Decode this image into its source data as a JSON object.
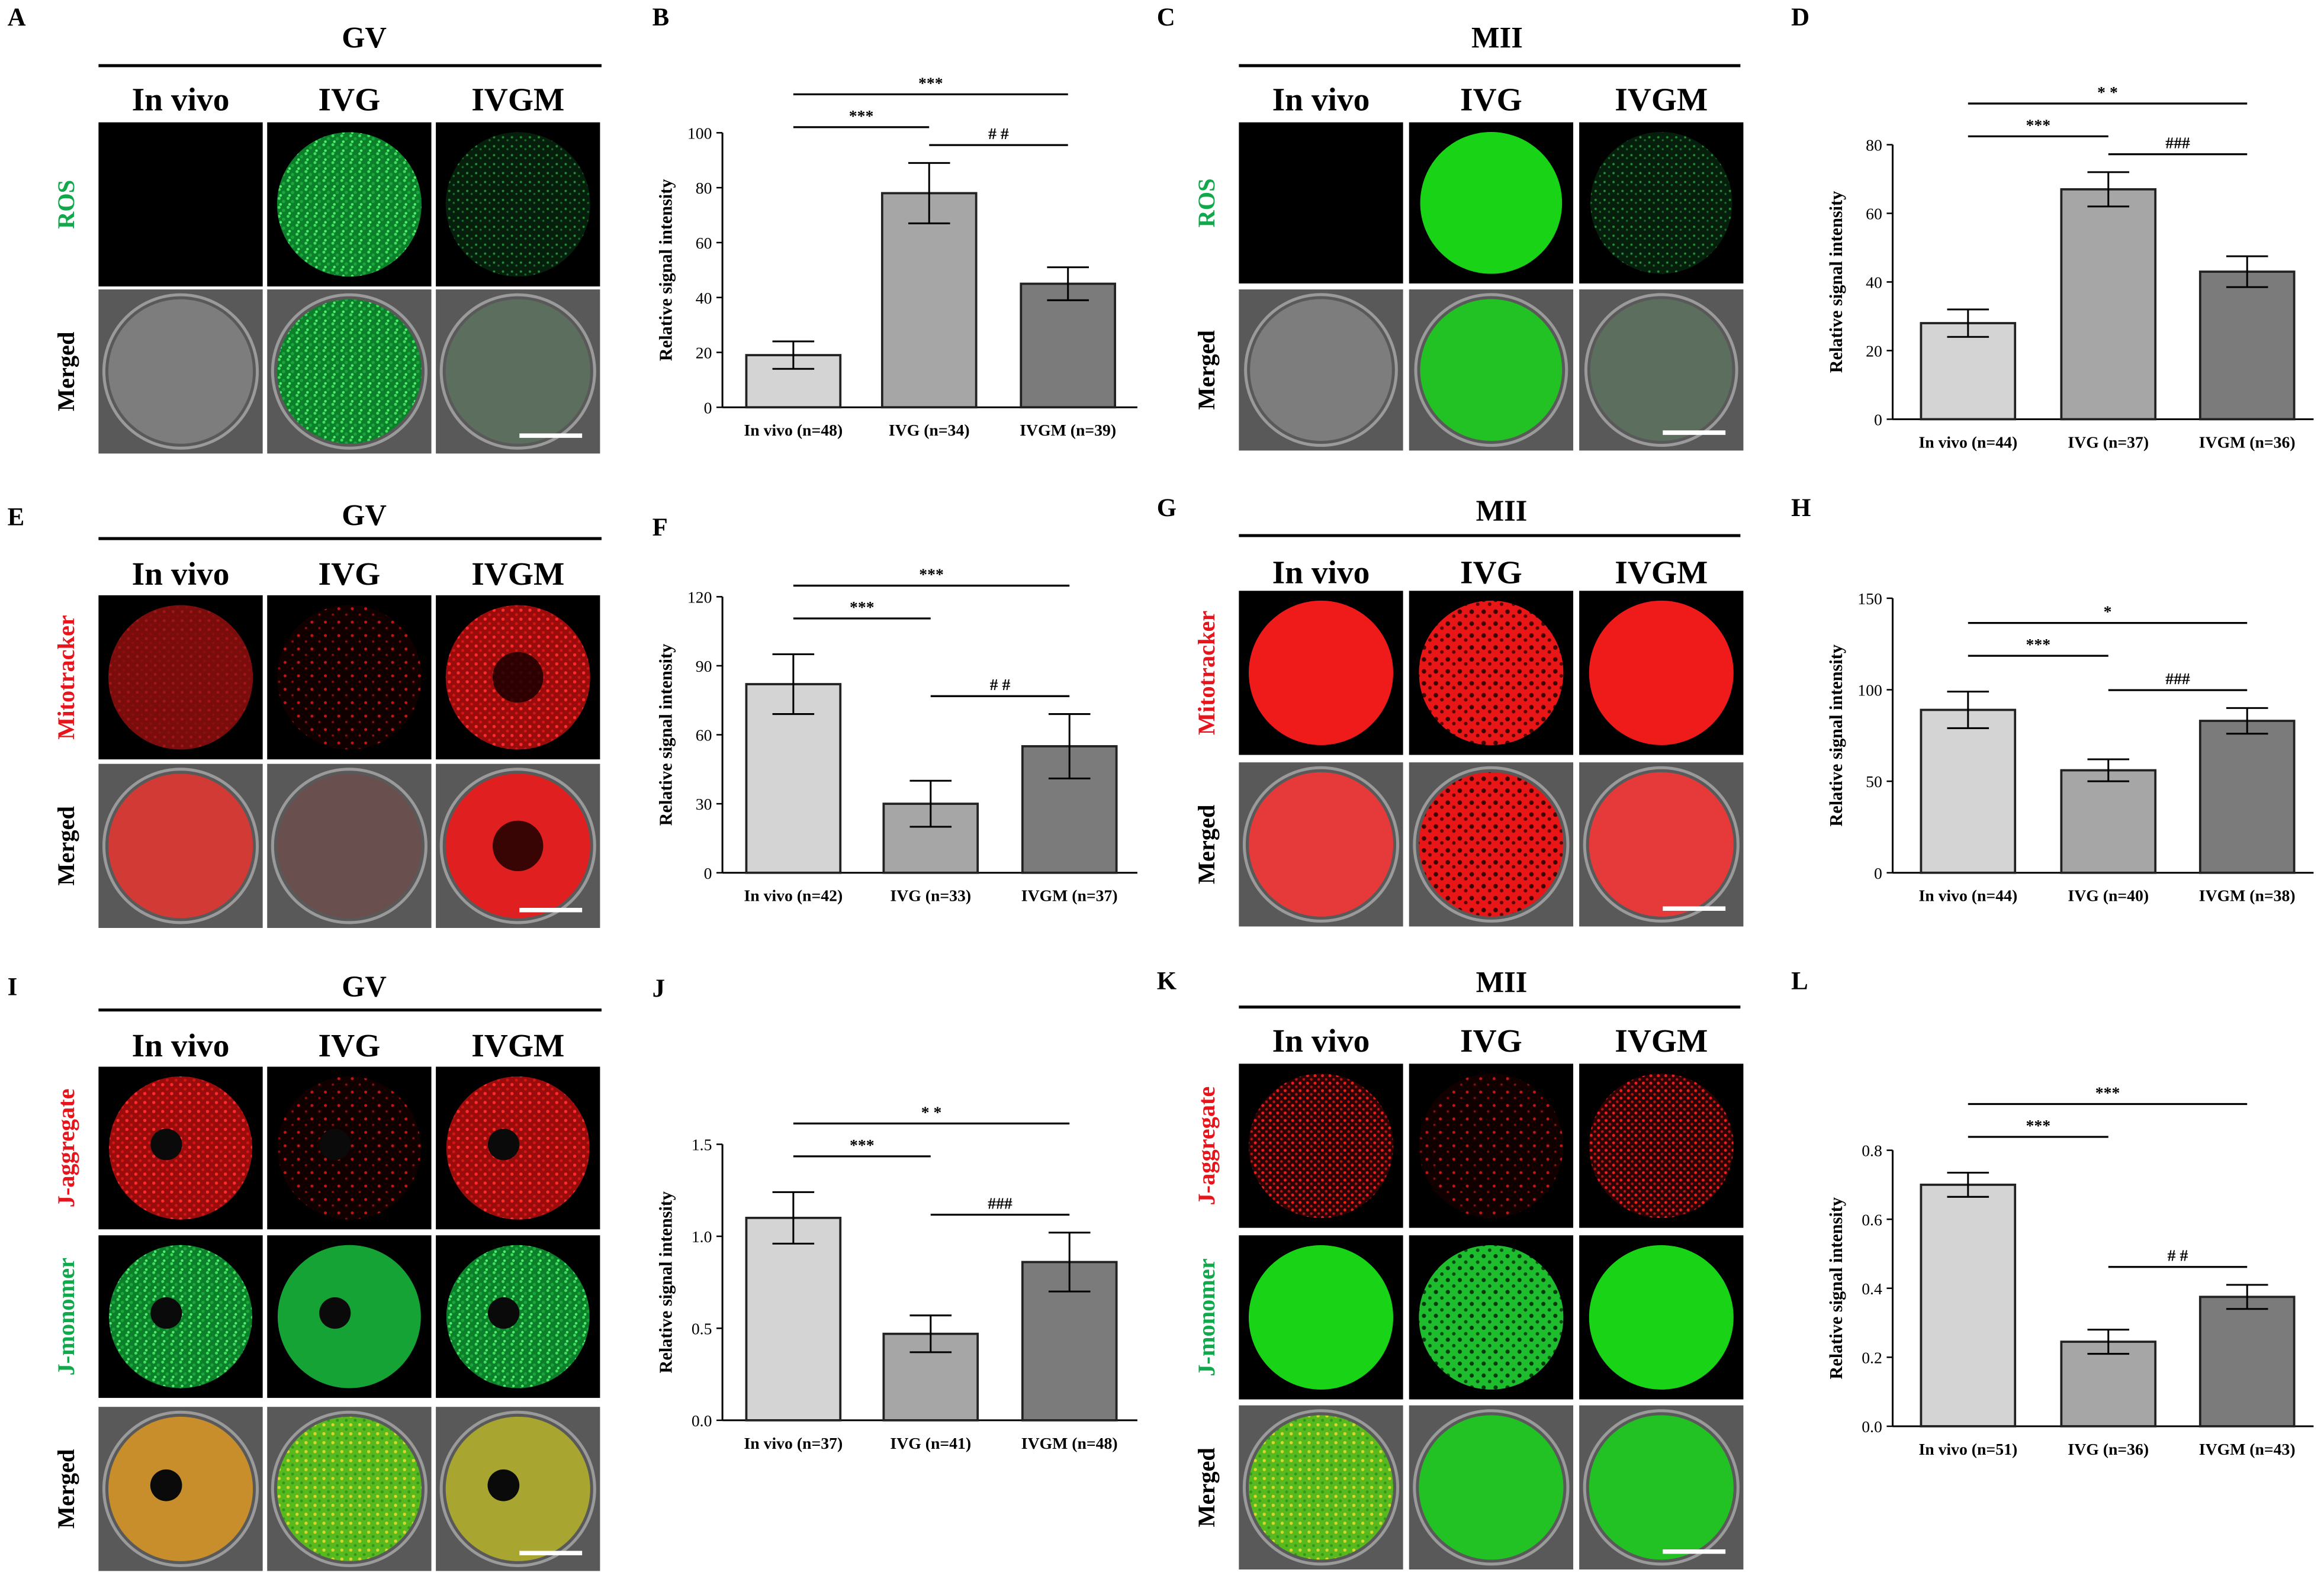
{
  "figure": {
    "image_panels": [
      {
        "letter": "A",
        "stage": "GV",
        "groups": [
          "In vivo",
          "IVG",
          "IVGM"
        ],
        "rows": [
          {
            "label": "ROS",
            "label_color": "#10a84a",
            "styles": [
              "black",
              "green-strong",
              "green-weak"
            ]
          },
          {
            "label": "Merged",
            "label_color": "#000000",
            "styles": [
              "gray-plain",
              "merged-green-strong",
              "merged-green-weak"
            ]
          }
        ]
      },
      {
        "letter": "C",
        "stage": "MII",
        "groups": [
          "In vivo",
          "IVG",
          "IVGM"
        ],
        "rows": [
          {
            "label": "ROS",
            "label_color": "#10a84a",
            "styles": [
              "black",
              "green-solid",
              "green-weak"
            ]
          },
          {
            "label": "Merged",
            "label_color": "#000000",
            "styles": [
              "gray-plain",
              "merged-green-solid",
              "merged-green-weak"
            ]
          }
        ]
      },
      {
        "letter": "E",
        "stage": "GV",
        "groups": [
          "In vivo",
          "IVG",
          "IVGM"
        ],
        "rows": [
          {
            "label": "Mitotracker",
            "label_color": "#e8141c",
            "styles": [
              "red-dim",
              "red-sparse",
              "red-ring"
            ]
          },
          {
            "label": "Merged",
            "label_color": "#000000",
            "styles": [
              "merged-red-dim",
              "merged-red-sparse",
              "merged-red-ring"
            ]
          }
        ]
      },
      {
        "letter": "G",
        "stage": "MII",
        "groups": [
          "In vivo",
          "IVG",
          "IVGM"
        ],
        "rows": [
          {
            "label": "Mitotracker",
            "label_color": "#e8141c",
            "styles": [
              "red-solid",
              "red-mottled",
              "red-solid"
            ]
          },
          {
            "label": "Merged",
            "label_color": "#000000",
            "styles": [
              "merged-red-solid",
              "merged-red-mottled",
              "merged-red-solid"
            ]
          }
        ]
      },
      {
        "letter": "I",
        "stage": "GV",
        "groups": [
          "In vivo",
          "IVG",
          "IVGM"
        ],
        "rows": [
          {
            "label": "J-aggregate",
            "label_color": "#e8141c",
            "styles": [
              "red-nucleus",
              "red-sparse-nucleus",
              "red-nucleus"
            ]
          },
          {
            "label": "J-monomer",
            "label_color": "#10a84a",
            "styles": [
              "green-nucleus",
              "green-nucleus-bright",
              "green-nucleus"
            ]
          },
          {
            "label": "Merged",
            "label_color": "#000000",
            "styles": [
              "merged-orange",
              "merged-yellowgreen",
              "merged-olive"
            ]
          }
        ]
      },
      {
        "letter": "K",
        "stage": "MII",
        "groups": [
          "In vivo",
          "IVG",
          "IVGM"
        ],
        "rows": [
          {
            "label": "J-aggregate",
            "label_color": "#e8141c",
            "styles": [
              "red-speckle",
              "red-faint",
              "red-speckle"
            ]
          },
          {
            "label": "J-monomer",
            "label_color": "#10a84a",
            "styles": [
              "green-solid",
              "green-mottled",
              "green-solid"
            ]
          },
          {
            "label": "Merged",
            "label_color": "#000000",
            "styles": [
              "merged-yellowgreen",
              "merged-green-solid",
              "merged-green-solid"
            ]
          }
        ]
      }
    ]
  },
  "chart_data": [
    {
      "letter": "B",
      "type": "bar",
      "categories": [
        "In vivo (n=48)",
        "IVG (n=34)",
        "IVGM (n=39)"
      ],
      "values": [
        19,
        78,
        45
      ],
      "errors": [
        5,
        11,
        6
      ],
      "ylabel": "Relative signal intensity",
      "ylim": [
        0,
        100
      ],
      "yticks": [
        0,
        20,
        40,
        60,
        80,
        100
      ],
      "comparisons": [
        {
          "from": 0,
          "to": 2,
          "label": "***"
        },
        {
          "from": 0,
          "to": 1,
          "label": "***"
        },
        {
          "from": 1,
          "to": 2,
          "label": "# #"
        }
      ]
    },
    {
      "letter": "D",
      "type": "bar",
      "categories": [
        "In vivo (n=44)",
        "IVG (n=37)",
        "IVGM (n=36)"
      ],
      "values": [
        28,
        67,
        43
      ],
      "errors": [
        4,
        5,
        4.5
      ],
      "ylabel": "Relative signal intensity",
      "ylim": [
        0,
        80
      ],
      "yticks": [
        0,
        20,
        40,
        60,
        80
      ],
      "comparisons": [
        {
          "from": 0,
          "to": 2,
          "label": "* *"
        },
        {
          "from": 0,
          "to": 1,
          "label": "***"
        },
        {
          "from": 1,
          "to": 2,
          "label": "###"
        }
      ]
    },
    {
      "letter": "F",
      "type": "bar",
      "categories": [
        "In vivo (n=42)",
        "IVG (n=33)",
        "IVGM (n=37)"
      ],
      "values": [
        82,
        30,
        55
      ],
      "errors": [
        13,
        10,
        14
      ],
      "ylabel": "Relative signal intensity",
      "ylim": [
        0,
        120
      ],
      "yticks": [
        0,
        30,
        60,
        90,
        120
      ],
      "comparisons": [
        {
          "from": 0,
          "to": 2,
          "label": "***"
        },
        {
          "from": 0,
          "to": 1,
          "label": "***"
        },
        {
          "from": 1,
          "to": 2,
          "label": "# #"
        }
      ]
    },
    {
      "letter": "H",
      "type": "bar",
      "categories": [
        "In vivo (n=44)",
        "IVG (n=40)",
        "IVGM (n=38)"
      ],
      "values": [
        89,
        56,
        83
      ],
      "errors": [
        10,
        6,
        7
      ],
      "ylabel": "Relative signal intensity",
      "ylim": [
        0,
        150
      ],
      "yticks": [
        0,
        50,
        100,
        150
      ],
      "comparisons": [
        {
          "from": 0,
          "to": 2,
          "label": "*"
        },
        {
          "from": 0,
          "to": 1,
          "label": "***"
        },
        {
          "from": 1,
          "to": 2,
          "label": "###"
        }
      ]
    },
    {
      "letter": "J",
      "type": "bar",
      "categories": [
        "In vivo (n=37)",
        "IVG (n=41)",
        "IVGM (n=48)"
      ],
      "values": [
        1.1,
        0.47,
        0.86
      ],
      "errors": [
        0.14,
        0.1,
        0.16
      ],
      "ylabel": "Relative signal intensity",
      "ylim": [
        0,
        1.5
      ],
      "yticks": [
        "0.0",
        "0.5",
        "1.0",
        "1.5"
      ],
      "comparisons": [
        {
          "from": 0,
          "to": 2,
          "label": "* *"
        },
        {
          "from": 0,
          "to": 1,
          "label": "***"
        },
        {
          "from": 1,
          "to": 2,
          "label": "###"
        }
      ]
    },
    {
      "letter": "L",
      "type": "bar",
      "categories": [
        "In vivo (n=51)",
        "IVG (n=36)",
        "IVGM (n=43)"
      ],
      "values": [
        0.7,
        0.245,
        0.375
      ],
      "errors": [
        0.035,
        0.035,
        0.035
      ],
      "ylabel": "Relative signal intensity",
      "ylim": [
        0,
        0.8
      ],
      "yticks": [
        "0.0",
        "0.2",
        "0.4",
        "0.6",
        "0.8"
      ],
      "comparisons": [
        {
          "from": 0,
          "to": 2,
          "label": "***"
        },
        {
          "from": 0,
          "to": 1,
          "label": "***"
        },
        {
          "from": 1,
          "to": 2,
          "label": "# #"
        }
      ]
    }
  ]
}
